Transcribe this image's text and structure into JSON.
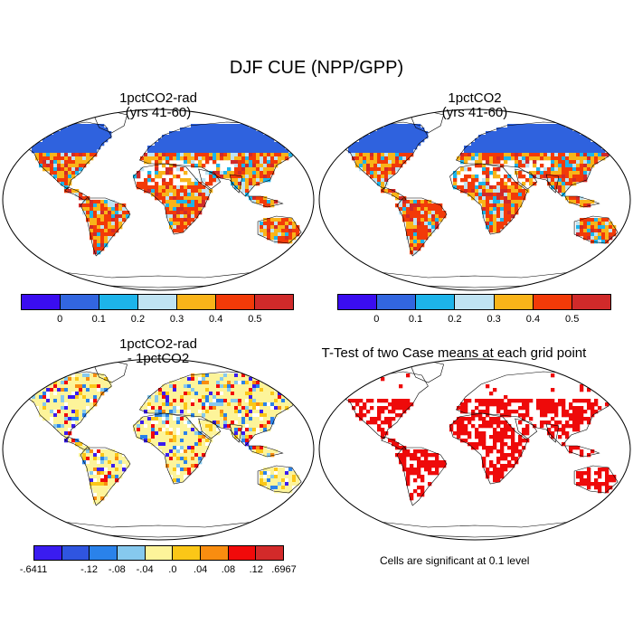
{
  "title": "DJF CUE (NPP/GPP)",
  "panels": [
    {
      "title_line1": "1pctCO2-rad",
      "title_line2": "(yrs 41-60)"
    },
    {
      "title_line1": "1pctCO2",
      "title_line2": "(yrs 41-60)"
    },
    {
      "title_line1": "1pctCO2-rad",
      "title_line2": "- 1pctCO2"
    },
    {
      "title_line1": "T-Test of two Case means at each grid point"
    }
  ],
  "colorbar_top": {
    "colors": [
      "#3a0df0",
      "#3266e0",
      "#1db4ea",
      "#bfe3f2",
      "#f9b419",
      "#f23a08",
      "#d02a2a"
    ],
    "tick_labels": [
      "0",
      "0.1",
      "0.2",
      "0.3",
      "0.4",
      "0.5"
    ]
  },
  "colorbar_diff": {
    "colors": [
      "#3a1cf0",
      "#2f55e0",
      "#2a82ea",
      "#86c9ee",
      "#fdf49a",
      "#fbc717",
      "#f98d10",
      "#f10a0a",
      "#d32a2a"
    ],
    "tick_labels": [
      "-.6411",
      "-.12",
      "-.08",
      "-.04",
      ".0",
      ".04",
      ".08",
      ".12",
      ".6967"
    ]
  },
  "significance_note": "Cells are significant at 0.1 level",
  "colors": {
    "high_latitude_blue": "#2f62de",
    "significant_red": "#ee0a0a",
    "difference_background_yellow": "#fdf49a"
  }
}
